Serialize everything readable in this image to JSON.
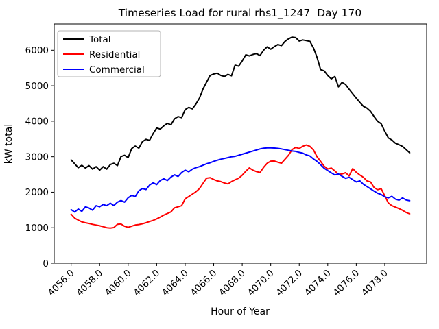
{
  "chart_data": {
    "type": "line",
    "title": "Timeseries Load for rural rhs1_1247  Day 170",
    "xlabel": "Hour of Year",
    "ylabel": "kW total",
    "xlim": [
      4054.8125,
      4080.9375
    ],
    "ylim": [
      0,
      6740
    ],
    "grid": false,
    "background_color": "#ffffff",
    "legend": {
      "position": "upper left",
      "entries": [
        {
          "label": "Total",
          "color": "#000000"
        },
        {
          "label": "Residential",
          "color": "#ff0000"
        },
        {
          "label": "Commercial",
          "color": "#0000ff"
        }
      ]
    },
    "x_ticks": {
      "rotation": 45,
      "values": [
        4056,
        4058,
        4060,
        4062,
        4064,
        4066,
        4068,
        4070,
        4072,
        4074,
        4076,
        4078
      ],
      "labels": [
        "4056.0",
        "4058.0",
        "4060.0",
        "4062.0",
        "4064.0",
        "4066.0",
        "4068.0",
        "4070.0",
        "4072.0",
        "4074.0",
        "4076.0",
        "4078.0"
      ]
    },
    "y_ticks": {
      "values": [
        0,
        1000,
        2000,
        3000,
        4000,
        5000,
        6000
      ],
      "labels": [
        "0",
        "1000",
        "2000",
        "3000",
        "4000",
        "5000",
        "6000"
      ]
    },
    "x": [
      4056.0,
      4056.25,
      4056.5,
      4056.75,
      4057.0,
      4057.25,
      4057.5,
      4057.75,
      4058.0,
      4058.25,
      4058.5,
      4058.75,
      4059.0,
      4059.25,
      4059.5,
      4059.75,
      4060.0,
      4060.25,
      4060.5,
      4060.75,
      4061.0,
      4061.25,
      4061.5,
      4061.75,
      4062.0,
      4062.25,
      4062.5,
      4062.75,
      4063.0,
      4063.25,
      4063.5,
      4063.75,
      4064.0,
      4064.25,
      4064.5,
      4064.75,
      4065.0,
      4065.25,
      4065.5,
      4065.75,
      4066.0,
      4066.25,
      4066.5,
      4066.75,
      4067.0,
      4067.25,
      4067.5,
      4067.75,
      4068.0,
      4068.25,
      4068.5,
      4068.75,
      4069.0,
      4069.25,
      4069.5,
      4069.75,
      4070.0,
      4070.25,
      4070.5,
      4070.75,
      4071.0,
      4071.25,
      4071.5,
      4071.75,
      4072.0,
      4072.25,
      4072.5,
      4072.75,
      4073.0,
      4073.25,
      4073.5,
      4073.75,
      4074.0,
      4074.25,
      4074.5,
      4074.75,
      4075.0,
      4075.25,
      4075.5,
      4075.75,
      4076.0,
      4076.25,
      4076.5,
      4076.75,
      4077.0,
      4077.25,
      4077.5,
      4077.75,
      4078.0,
      4078.25,
      4078.5,
      4078.75,
      4079.0,
      4079.25,
      4079.5,
      4079.75
    ],
    "series": [
      {
        "name": "Total",
        "color": "#000000",
        "linewidth": 2,
        "values": [
          2910,
          2800,
          2690,
          2760,
          2680,
          2750,
          2650,
          2720,
          2620,
          2720,
          2650,
          2780,
          2815,
          2750,
          3005,
          3040,
          2975,
          3230,
          3300,
          3240,
          3425,
          3490,
          3460,
          3650,
          3810,
          3780,
          3870,
          3940,
          3900,
          4070,
          4130,
          4100,
          4330,
          4390,
          4350,
          4480,
          4650,
          4905,
          5100,
          5290,
          5330,
          5355,
          5290,
          5260,
          5320,
          5280,
          5580,
          5550,
          5700,
          5870,
          5840,
          5880,
          5905,
          5850,
          6000,
          6095,
          6030,
          6100,
          6160,
          6130,
          6250,
          6320,
          6370,
          6355,
          6260,
          6290,
          6270,
          6250,
          6065,
          5800,
          5455,
          5420,
          5290,
          5195,
          5260,
          4970,
          5095,
          5035,
          4900,
          4775,
          4650,
          4530,
          4420,
          4370,
          4280,
          4130,
          3995,
          3930,
          3720,
          3530,
          3470,
          3380,
          3340,
          3290,
          3200,
          3110
        ]
      },
      {
        "name": "Residential",
        "color": "#ff0000",
        "linewidth": 2,
        "values": [
          1380,
          1270,
          1215,
          1165,
          1140,
          1120,
          1095,
          1075,
          1055,
          1030,
          1000,
          990,
          1005,
          1095,
          1105,
          1040,
          1010,
          1045,
          1075,
          1090,
          1110,
          1140,
          1175,
          1205,
          1250,
          1300,
          1355,
          1400,
          1445,
          1560,
          1590,
          1620,
          1815,
          1880,
          1945,
          2010,
          2100,
          2250,
          2395,
          2410,
          2360,
          2320,
          2300,
          2260,
          2235,
          2300,
          2350,
          2395,
          2480,
          2590,
          2685,
          2620,
          2580,
          2555,
          2700,
          2815,
          2875,
          2880,
          2845,
          2815,
          2930,
          3040,
          3200,
          3265,
          3230,
          3295,
          3330,
          3290,
          3190,
          3000,
          2870,
          2730,
          2655,
          2680,
          2600,
          2500,
          2515,
          2550,
          2460,
          2665,
          2560,
          2485,
          2420,
          2320,
          2290,
          2130,
          2070,
          2100,
          1900,
          1700,
          1620,
          1580,
          1540,
          1490,
          1430,
          1390
        ]
      },
      {
        "name": "Commercial",
        "color": "#0000ff",
        "linewidth": 2,
        "values": [
          1510,
          1440,
          1525,
          1460,
          1590,
          1555,
          1495,
          1620,
          1590,
          1655,
          1620,
          1690,
          1625,
          1720,
          1765,
          1720,
          1845,
          1910,
          1880,
          2040,
          2105,
          2075,
          2200,
          2265,
          2215,
          2330,
          2380,
          2330,
          2425,
          2490,
          2445,
          2555,
          2620,
          2575,
          2650,
          2690,
          2720,
          2760,
          2800,
          2830,
          2870,
          2900,
          2930,
          2950,
          2975,
          3000,
          3010,
          3040,
          3070,
          3100,
          3130,
          3160,
          3190,
          3220,
          3240,
          3250,
          3250,
          3245,
          3235,
          3220,
          3200,
          3180,
          3160,
          3150,
          3120,
          3100,
          3050,
          3020,
          2935,
          2870,
          2775,
          2675,
          2610,
          2545,
          2485,
          2515,
          2450,
          2390,
          2420,
          2355,
          2290,
          2320,
          2225,
          2160,
          2095,
          2030,
          1970,
          1935,
          1870,
          1840,
          1885,
          1805,
          1775,
          1840,
          1780,
          1760
        ]
      }
    ]
  }
}
